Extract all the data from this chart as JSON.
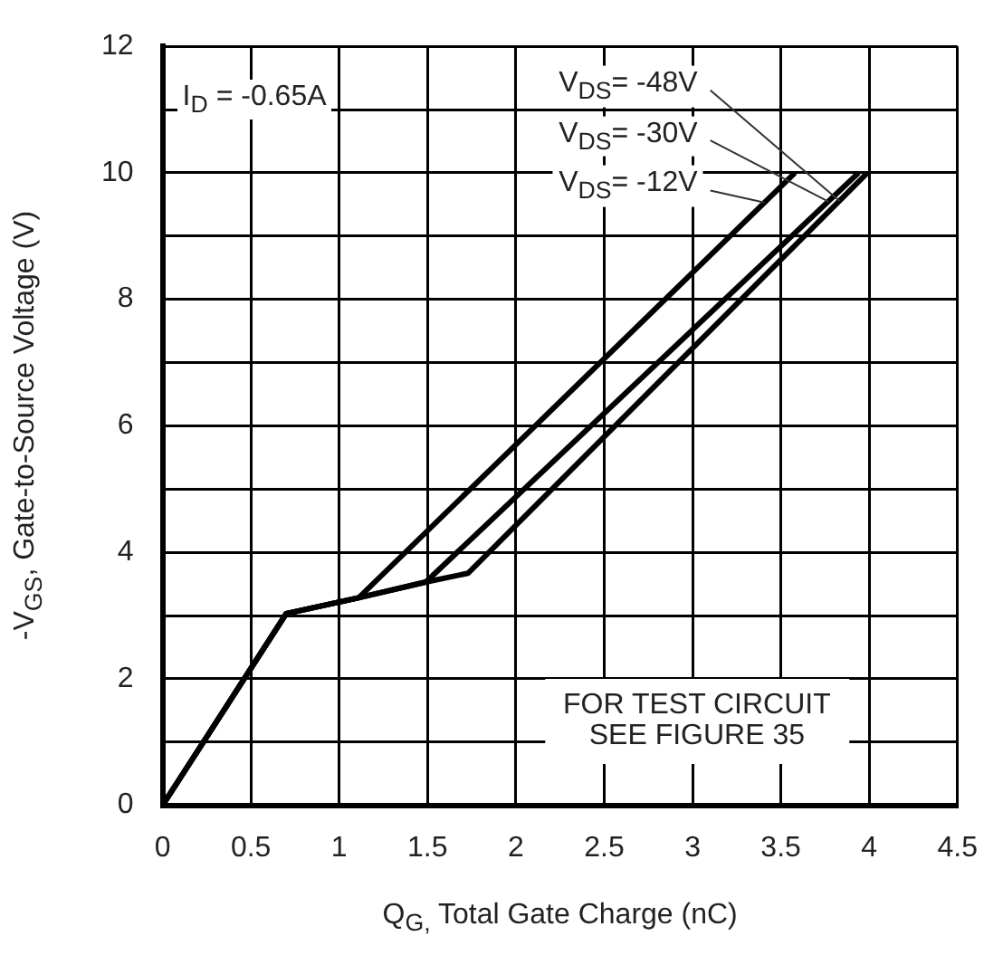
{
  "chart_data": {
    "type": "line",
    "xlabel": "Q$_{G,}$ Total Gate Charge (nC)",
    "ylabel": "-V$_{GS}$, Gate-to-Source Voltage (V)",
    "xlim": [
      0,
      4.5
    ],
    "xticks": [
      0,
      0.5,
      1,
      1.5,
      2,
      2.5,
      3,
      3.5,
      4,
      4.5
    ],
    "ylim": [
      0,
      12
    ],
    "yticks": [
      0,
      {
        "value": 1,
        "label": null
      },
      2,
      {
        "value": 3,
        "label": null
      },
      4,
      {
        "value": 5,
        "label": null
      },
      6,
      {
        "value": 7,
        "label": null
      },
      8,
      {
        "value": 9,
        "label": null
      },
      10,
      {
        "value": 11,
        "label": null
      },
      12
    ],
    "grid": true,
    "legend": false,
    "marker": "none",
    "line_style": "solid",
    "annotations": [
      "I$_{D}$ = -0.65A",
      "FOR TEST CIRCUIT\nSEE FIGURE 35"
    ],
    "series": [
      {
        "name": "V$_{DS}$= -48V",
        "color": "#000000",
        "x": [
          0,
          0.7,
          1.11,
          1.49,
          1.73,
          3.99
        ],
        "values": [
          0,
          3.03,
          3.28,
          3.53,
          3.67,
          10
        ]
      },
      {
        "name": "V$_{DS}$= -30V",
        "color": "#000000",
        "x": [
          0,
          0.7,
          1.11,
          1.49,
          3.94
        ],
        "values": [
          0,
          3.03,
          3.28,
          3.53,
          10
        ]
      },
      {
        "name": "V$_{DS}$= -12V",
        "color": "#000000",
        "x": [
          0,
          0.7,
          1.11,
          3.58
        ],
        "values": [
          0,
          3.03,
          3.28,
          10
        ]
      }
    ]
  }
}
